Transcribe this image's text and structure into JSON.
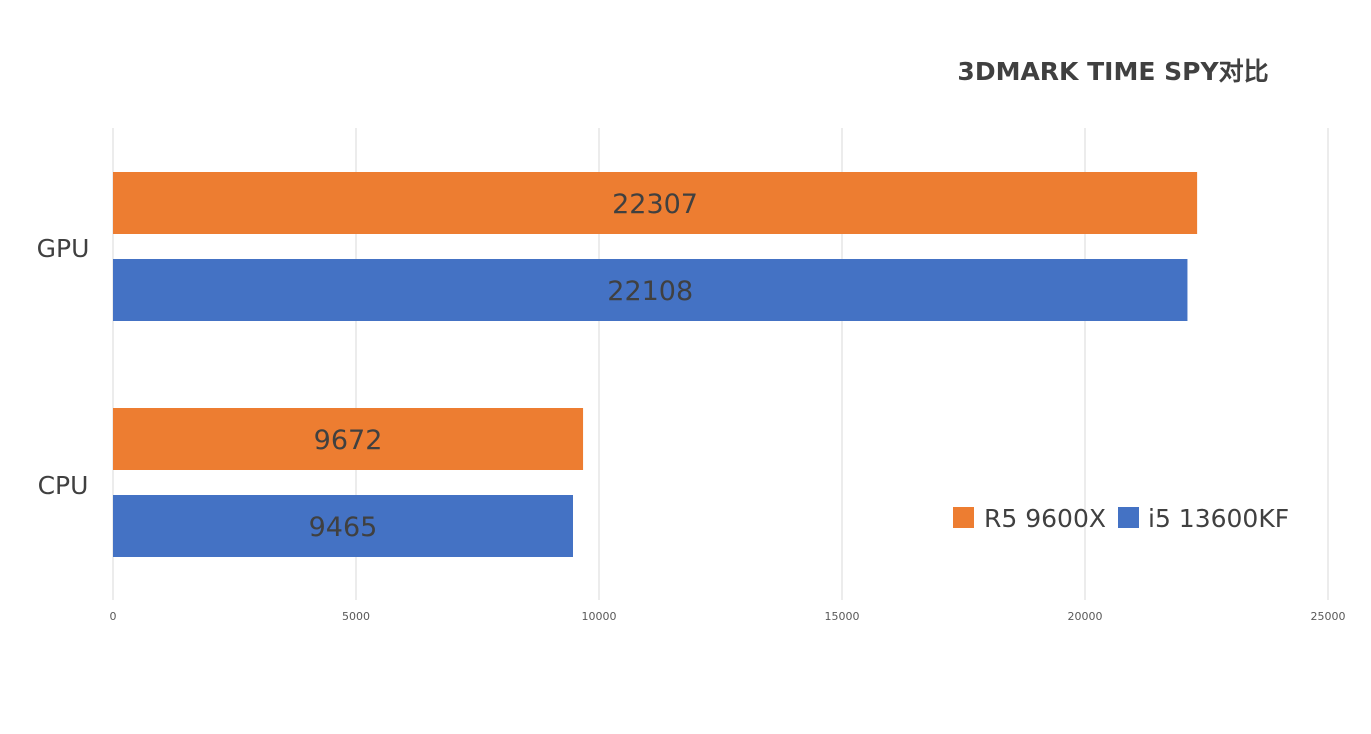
{
  "chart_data": {
    "type": "bar",
    "orientation": "horizontal",
    "title": "3DMARK TIME SPY对比",
    "categories": [
      "GPU",
      "CPU"
    ],
    "series": [
      {
        "name": "R5 9600X",
        "color": "#ED7D31",
        "values": [
          22307,
          9672
        ]
      },
      {
        "name": "i5 13600KF",
        "color": "#4472C4",
        "values": [
          22108,
          9465
        ]
      }
    ],
    "xlim": [
      0,
      25000
    ],
    "x_ticks": [
      0,
      5000,
      10000,
      15000,
      20000,
      25000
    ],
    "grid": true,
    "legend_position": "bottom-right"
  }
}
